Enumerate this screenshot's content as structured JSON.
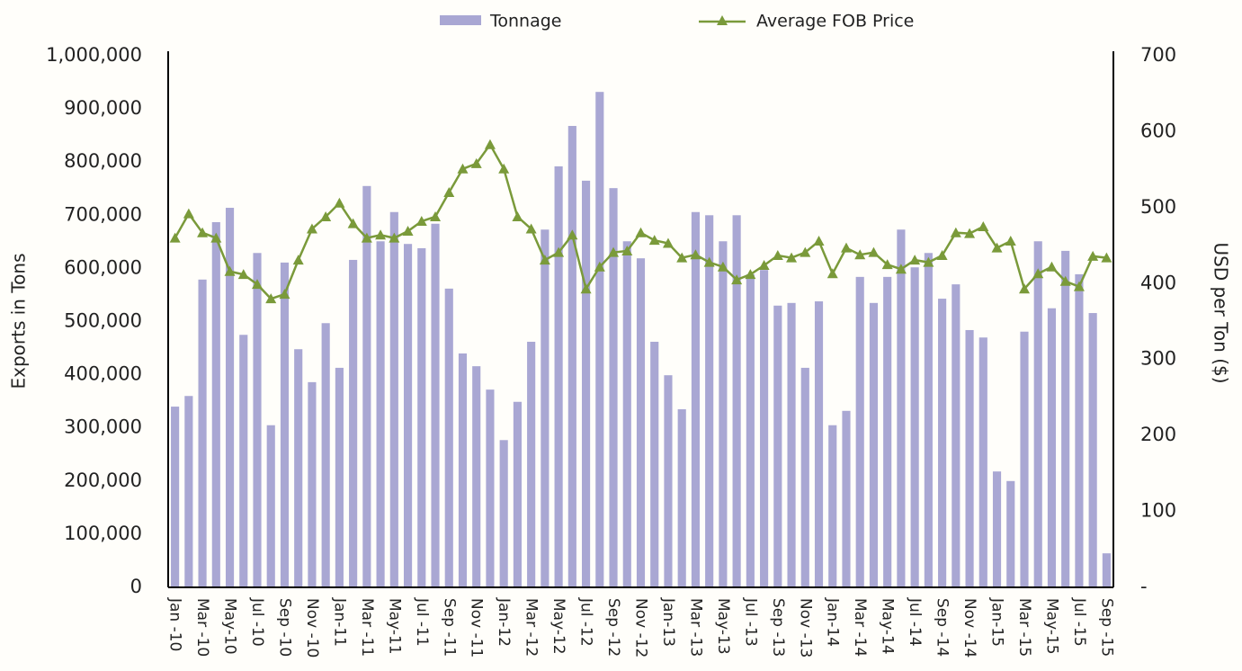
{
  "chart_data": {
    "type": "bar_line",
    "categories": [
      "Jan -10",
      null,
      "Mar -10",
      null,
      "May-10",
      null,
      "Jul -10",
      null,
      "Sep -10",
      null,
      "Nov -10",
      null,
      "Jan-11",
      null,
      "Mar -11",
      null,
      "May-11",
      null,
      "Jul -11",
      null,
      "Sep -11",
      null,
      "Nov -11",
      null,
      "Jan-12",
      null,
      "Mar -12",
      null,
      "May-12",
      null,
      "Jul -12",
      null,
      "Sep -12",
      null,
      "Nov -12",
      null,
      "Jan-13",
      null,
      "Mar -13",
      null,
      "May-13",
      null,
      "Jul -13",
      null,
      "Sep -13",
      null,
      "Nov -13",
      null,
      "Jan-14",
      null,
      "Mar -14",
      null,
      "May-14",
      null,
      "Jul -14",
      null,
      "Sep -14",
      null,
      "Nov -14",
      null,
      "Jan-15",
      null,
      "Mar -15",
      null,
      "May-15",
      null,
      "Jul -15",
      null,
      "Sep -15"
    ],
    "series": [
      {
        "name": "Tonnage",
        "color": "#a9a7d3",
        "type": "bar",
        "axis": "y",
        "values": [
          340000,
          360000,
          579000,
          687000,
          714000,
          475000,
          629000,
          305000,
          611000,
          448000,
          386000,
          497000,
          413000,
          616000,
          755000,
          651000,
          706000,
          646000,
          638000,
          684000,
          562000,
          440000,
          416000,
          372000,
          277000,
          349000,
          462000,
          673000,
          792000,
          868000,
          765000,
          932000,
          751000,
          651000,
          619000,
          462000,
          399000,
          335000,
          706000,
          700000,
          651000,
          700000,
          589000,
          597000,
          530000,
          535000,
          413000,
          538000,
          305000,
          332000,
          584000,
          535000,
          584000,
          673000,
          602000,
          629000,
          543000,
          570000,
          484000,
          470000,
          218000,
          200000,
          481000,
          651000,
          525000,
          633000,
          589000,
          516000,
          64000
        ]
      },
      {
        "name": "Average FOB Price",
        "color": "#7a9a3a",
        "type": "line",
        "axis": "y2",
        "values": [
          460,
          492,
          467,
          460,
          416,
          412,
          399,
          380,
          386,
          431,
          472,
          488,
          506,
          479,
          460,
          464,
          460,
          469,
          482,
          488,
          520,
          551,
          558,
          583,
          551,
          488,
          472,
          431,
          441,
          464,
          393,
          422,
          441,
          443,
          467,
          457,
          453,
          434,
          438,
          428,
          422,
          405,
          412,
          424,
          437,
          434,
          441,
          456,
          413,
          447,
          438,
          441,
          425,
          419,
          431,
          428,
          437,
          467,
          466,
          475,
          447,
          456,
          393,
          413,
          422,
          403,
          396,
          436,
          434
        ]
      }
    ],
    "ylabel": "Exports in Tons",
    "y2label": "USD per Ton ($)",
    "ylim": [
      0,
      1000000
    ],
    "yticks": [
      0,
      {
        "value": 100000,
        "label": "100,000"
      },
      {
        "value": 200000,
        "label": "200,000"
      },
      {
        "value": 300000,
        "label": "300,000"
      },
      {
        "value": 400000,
        "label": "400,000"
      },
      {
        "value": 500000,
        "label": "500,000"
      },
      {
        "value": 600000,
        "label": "600,000"
      },
      {
        "value": 700000,
        "label": "700,000"
      },
      {
        "value": 800000,
        "label": "800,000"
      },
      {
        "value": 900000,
        "label": "900,000"
      },
      {
        "value": 1000000,
        "label": "1,000,000"
      }
    ],
    "y2lim": [
      0,
      700
    ],
    "y2ticks": [
      {
        "value": 0,
        "label": "-"
      },
      100,
      200,
      300,
      400,
      500,
      600,
      700
    ],
    "legend": "top"
  }
}
